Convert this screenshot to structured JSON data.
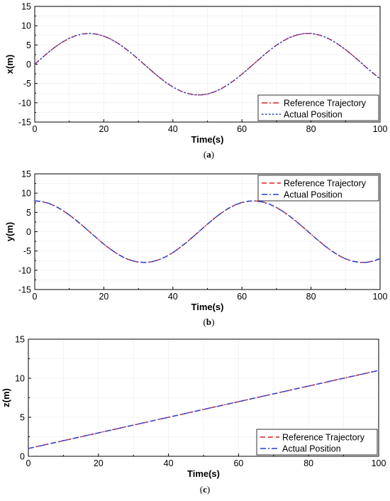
{
  "chart_data": [
    {
      "type": "line",
      "caption_open": "(",
      "caption_letter": "a",
      "caption_close": ")",
      "xlabel": "Time(s)",
      "ylabel": "x(m)",
      "xlim": [
        0,
        100
      ],
      "ylim": [
        -15,
        15
      ],
      "xticks": [
        0,
        20,
        40,
        60,
        80,
        100
      ],
      "yticks": [
        -15,
        -10,
        -5,
        0,
        5,
        10,
        15
      ],
      "legend_position": "bottom-right",
      "grid": true,
      "x": [
        0,
        2,
        4,
        6,
        8,
        10,
        12,
        14,
        16,
        18,
        20,
        22,
        24,
        26,
        28,
        30,
        32,
        34,
        36,
        38,
        40,
        42,
        44,
        46,
        48,
        50,
        52,
        54,
        56,
        58,
        60,
        62,
        64,
        66,
        68,
        70,
        72,
        74,
        76,
        78,
        80,
        82,
        84,
        86,
        88,
        90,
        92,
        94,
        96,
        98,
        100
      ],
      "series": [
        {
          "name": "Reference Trajectory",
          "color": "#e8191b",
          "dash": "dashdot",
          "values": [
            0,
            1.59,
            3.12,
            4.52,
            5.74,
            6.73,
            7.44,
            7.87,
            7.99,
            7.79,
            7.29,
            6.51,
            5.48,
            4.23,
            2.83,
            1.31,
            -0.27,
            -1.84,
            -3.36,
            -4.73,
            -5.91,
            -6.86,
            -7.53,
            -7.91,
            -7.98,
            -7.74,
            -7.19,
            -6.36,
            -5.29,
            -4.01,
            -2.58,
            -1.05,
            0.53,
            2.09,
            3.59,
            4.94,
            6.09,
            6.99,
            7.62,
            7.95,
            7.97,
            7.68,
            7.08,
            6.21,
            5.09,
            3.78,
            2.33,
            0.79,
            -0.8,
            -2.34,
            -3.79
          ]
        },
        {
          "name": "Actual Position",
          "color": "#1f3fe0",
          "dash": "dot",
          "values": [
            0,
            1.59,
            3.12,
            4.52,
            5.74,
            6.73,
            7.44,
            7.87,
            7.99,
            7.79,
            7.29,
            6.51,
            5.48,
            4.23,
            2.83,
            1.31,
            -0.27,
            -1.84,
            -3.36,
            -4.73,
            -5.91,
            -6.86,
            -7.53,
            -7.91,
            -7.98,
            -7.74,
            -7.19,
            -6.36,
            -5.29,
            -4.01,
            -2.58,
            -1.05,
            0.53,
            2.09,
            3.59,
            4.94,
            6.09,
            6.99,
            7.62,
            7.95,
            7.97,
            7.68,
            7.08,
            6.21,
            5.09,
            3.78,
            2.33,
            0.79,
            -0.8,
            -2.34,
            -3.79
          ]
        }
      ]
    },
    {
      "type": "line",
      "caption_open": "(",
      "caption_letter": "b",
      "caption_close": ")",
      "xlabel": "Time(s)",
      "ylabel": "y(m)",
      "xlim": [
        0,
        100
      ],
      "ylim": [
        -15,
        15
      ],
      "xticks": [
        0,
        20,
        40,
        60,
        80,
        100
      ],
      "yticks": [
        -15,
        -10,
        -5,
        0,
        5,
        10,
        15
      ],
      "legend_position": "top-right",
      "grid": true,
      "x": [
        0,
        2,
        4,
        6,
        8,
        10,
        12,
        14,
        16,
        18,
        20,
        22,
        24,
        26,
        28,
        30,
        32,
        34,
        36,
        38,
        40,
        42,
        44,
        46,
        48,
        50,
        52,
        54,
        56,
        58,
        60,
        62,
        64,
        66,
        68,
        70,
        72,
        74,
        76,
        78,
        80,
        82,
        84,
        86,
        88,
        90,
        92,
        94,
        96,
        98,
        100
      ],
      "series": [
        {
          "name": "Reference Trajectory",
          "color": "#e8191b",
          "dash": "dash",
          "values": [
            8,
            7.84,
            7.37,
            6.6,
            5.57,
            4.34,
            2.96,
            1.45,
            -0.12,
            -1.69,
            -3.22,
            -4.6,
            -5.81,
            -6.8,
            -7.49,
            -7.88,
            -7.99,
            -7.78,
            -7.27,
            -6.47,
            -5.42,
            -4.16,
            -2.73,
            -1.2,
            0.39,
            1.95,
            3.46,
            4.83,
            6,
            6.93,
            7.58,
            7.92,
            7.98,
            7.71,
            7.14,
            6.28,
            5.18,
            3.9,
            2.47,
            0.93,
            -0.64,
            -2.19,
            -3.67,
            -5.01,
            -6.15,
            -7.04,
            -7.65,
            -7.95,
            -7.96,
            -7.63,
            -7.01
          ]
        },
        {
          "name": "Actual Position",
          "color": "#1f3fe0",
          "dash": "dashdot",
          "values": [
            8,
            7.84,
            7.37,
            6.6,
            5.57,
            4.34,
            2.96,
            1.45,
            -0.12,
            -1.69,
            -3.22,
            -4.6,
            -5.81,
            -6.8,
            -7.49,
            -7.88,
            -7.99,
            -7.78,
            -7.27,
            -6.47,
            -5.42,
            -4.16,
            -2.73,
            -1.2,
            0.39,
            1.95,
            3.46,
            4.83,
            6,
            6.93,
            7.58,
            7.92,
            7.98,
            7.71,
            7.14,
            6.28,
            5.18,
            3.9,
            2.47,
            0.93,
            -0.64,
            -2.19,
            -3.67,
            -5.01,
            -6.15,
            -7.04,
            -7.65,
            -7.95,
            -7.96,
            -7.63,
            -7.01
          ]
        }
      ]
    },
    {
      "type": "line",
      "caption_open": "(",
      "caption_letter": "c",
      "caption_close": ")",
      "xlabel": "Time(s)",
      "ylabel": "z(m)",
      "xlim": [
        0,
        100
      ],
      "ylim": [
        0,
        15
      ],
      "xticks": [
        0,
        20,
        40,
        60,
        80,
        100
      ],
      "yticks": [
        0,
        5,
        10,
        15
      ],
      "legend_position": "bottom-right",
      "grid": true,
      "x": [
        0,
        100
      ],
      "series": [
        {
          "name": "Reference Trajectory",
          "color": "#e8191b",
          "dash": "dash",
          "values": [
            1,
            11
          ]
        },
        {
          "name": "Actual Position",
          "color": "#1f3fe0",
          "dash": "dashdot",
          "values": [
            1,
            11
          ]
        }
      ]
    }
  ]
}
